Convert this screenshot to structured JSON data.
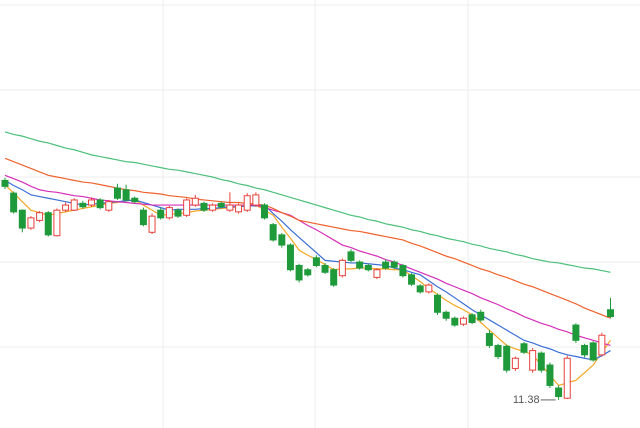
{
  "chart_data": {
    "type": "candlestick",
    "categories": [
      null,
      null,
      null,
      null,
      null,
      null,
      null,
      null,
      null,
      null,
      null,
      null,
      null,
      null,
      null,
      null,
      null,
      null,
      null,
      null,
      null,
      null,
      null,
      null,
      null,
      null,
      null,
      null,
      null,
      null,
      null,
      null,
      null,
      null,
      null,
      null,
      null,
      null,
      null,
      null,
      null,
      null,
      null,
      null,
      null,
      null,
      null,
      null,
      null,
      null,
      null,
      null,
      null,
      null,
      null,
      null,
      null,
      null,
      null,
      null,
      null,
      null,
      null,
      null,
      null,
      null,
      null,
      null,
      null,
      null,
      null
    ],
    "open": [
      13.96,
      13.81,
      13.61,
      13.4,
      13.49,
      13.58,
      13.31,
      13.61,
      13.61,
      13.69,
      13.67,
      13.73,
      13.61,
      13.87,
      13.85,
      13.75,
      13.61,
      13.35,
      13.61,
      13.52,
      13.61,
      13.55,
      13.67,
      13.69,
      13.61,
      13.69,
      13.61,
      13.59,
      13.61,
      13.67,
      13.67,
      13.44,
      13.32,
      13.2,
      12.96,
      12.91,
      13.05,
      12.96,
      12.91,
      12.84,
      13.12,
      13.0,
      12.96,
      12.82,
      13.0,
      13.0,
      12.96,
      12.85,
      12.72,
      12.65,
      12.61,
      12.41,
      12.34,
      12.27,
      12.38,
      12.41,
      12.16,
      12.02,
      12.01,
      11.75,
      12.04,
      11.73,
      11.93,
      11.79,
      11.52,
      11.4,
      12.26,
      12.02,
      12.05,
      11.91,
      12.44
    ],
    "close": [
      13.89,
      13.59,
      13.4,
      13.52,
      13.58,
      13.32,
      13.61,
      13.67,
      13.73,
      13.65,
      13.73,
      13.64,
      13.71,
      13.75,
      13.73,
      13.71,
      13.44,
      13.54,
      13.52,
      13.64,
      13.54,
      13.73,
      13.75,
      13.61,
      13.67,
      13.65,
      13.67,
      13.67,
      13.78,
      13.79,
      13.52,
      13.26,
      13.2,
      12.91,
      12.79,
      12.85,
      12.96,
      12.88,
      12.73,
      13.02,
      13.02,
      12.93,
      12.91,
      12.91,
      12.93,
      12.94,
      12.84,
      12.74,
      12.65,
      12.73,
      12.41,
      12.34,
      12.26,
      12.34,
      12.29,
      12.32,
      12.02,
      11.89,
      11.73,
      11.87,
      11.94,
      11.96,
      11.73,
      11.55,
      11.42,
      11.87,
      12.08,
      11.91,
      11.85,
      12.14,
      12.36
    ],
    "high": [
      13.99,
      13.83,
      13.62,
      13.54,
      13.6,
      13.6,
      13.63,
      13.7,
      13.75,
      13.72,
      13.76,
      13.75,
      13.73,
      13.92,
      13.91,
      13.77,
      13.64,
      13.57,
      13.64,
      13.66,
      13.63,
      13.75,
      13.79,
      13.71,
      13.69,
      13.71,
      13.82,
      13.69,
      13.81,
      13.82,
      13.69,
      13.46,
      13.34,
      13.22,
      12.98,
      12.93,
      13.08,
      12.99,
      12.93,
      13.04,
      13.15,
      13.02,
      12.98,
      12.93,
      13.03,
      13.02,
      12.98,
      12.87,
      12.74,
      12.75,
      12.63,
      12.43,
      12.36,
      12.36,
      12.4,
      12.44,
      12.2,
      12.04,
      12.03,
      11.89,
      12.06,
      11.99,
      11.95,
      11.82,
      11.55,
      11.9,
      12.28,
      12.04,
      12.07,
      12.17,
      12.58
    ],
    "low": [
      13.86,
      13.57,
      13.35,
      13.38,
      13.47,
      13.3,
      13.3,
      13.59,
      13.6,
      13.63,
      13.65,
      13.62,
      13.59,
      13.73,
      13.71,
      13.69,
      13.42,
      13.33,
      13.5,
      13.5,
      13.52,
      13.53,
      13.65,
      13.59,
      13.59,
      13.63,
      13.59,
      13.57,
      13.59,
      13.65,
      13.5,
      13.24,
      13.17,
      12.89,
      12.76,
      12.83,
      12.94,
      12.86,
      12.71,
      12.82,
      13.0,
      12.91,
      12.89,
      12.8,
      12.91,
      12.92,
      12.82,
      12.72,
      12.63,
      12.63,
      12.38,
      12.31,
      12.24,
      12.25,
      12.27,
      12.3,
      11.99,
      11.86,
      11.7,
      11.72,
      11.92,
      11.7,
      11.7,
      11.52,
      11.38,
      11.39,
      12.05,
      11.88,
      11.83,
      11.89,
      12.34
    ],
    "up_color": "#e8413c",
    "down_color": "#1f9a3a",
    "lines": [
      {
        "color": "#f5a623",
        "values": [
          13.91,
          13.81,
          13.71,
          13.61,
          13.58,
          13.55,
          13.57,
          13.59,
          13.61,
          13.63,
          13.65,
          13.67,
          13.69,
          13.7,
          13.72,
          13.73,
          13.67,
          13.61,
          13.55,
          13.56,
          13.57,
          13.58,
          13.6,
          13.61,
          13.62,
          13.63,
          13.64,
          13.65,
          13.66,
          13.67,
          13.61,
          13.55,
          13.41,
          13.28,
          13.14,
          13.08,
          13.03,
          12.97,
          12.91,
          12.92,
          12.92,
          12.93,
          12.93,
          12.92,
          12.92,
          12.91,
          12.91,
          12.84,
          12.77,
          12.69,
          12.62,
          12.55,
          12.49,
          12.44,
          12.38,
          12.29,
          12.2,
          12.11,
          12.02,
          11.98,
          11.95,
          11.91,
          11.79,
          11.67,
          11.55,
          11.58,
          11.61,
          11.7,
          11.79,
          11.94,
          12.08
        ]
      },
      {
        "color": "#3b6fd6",
        "values": [
          13.96,
          13.9,
          13.85,
          13.79,
          13.77,
          13.75,
          13.73,
          13.71,
          13.69,
          13.67,
          13.68,
          13.69,
          13.7,
          13.71,
          13.72,
          13.73,
          13.7,
          13.67,
          13.64,
          13.61,
          13.62,
          13.62,
          13.62,
          13.63,
          13.63,
          13.64,
          13.65,
          13.65,
          13.66,
          13.66,
          13.67,
          13.57,
          13.48,
          13.38,
          13.29,
          13.2,
          13.11,
          13.02,
          13.01,
          13.0,
          12.99,
          12.99,
          12.98,
          12.97,
          12.96,
          12.93,
          12.91,
          12.88,
          12.85,
          12.78,
          12.71,
          12.65,
          12.58,
          12.51,
          12.44,
          12.38,
          12.32,
          12.26,
          12.2,
          12.14,
          12.08,
          12.05,
          12.01,
          11.98,
          11.94,
          11.91,
          11.89,
          11.87,
          11.85,
          11.9,
          11.96
        ]
      },
      {
        "color": "#d62fb8",
        "values": [
          14.02,
          13.98,
          13.94,
          13.89,
          13.85,
          13.83,
          13.82,
          13.8,
          13.78,
          13.77,
          13.75,
          13.73,
          13.72,
          13.71,
          13.7,
          13.69,
          13.68,
          13.67,
          13.67,
          13.67,
          13.67,
          13.67,
          13.67,
          13.67,
          13.67,
          13.67,
          13.67,
          13.67,
          13.67,
          13.67,
          13.64,
          13.61,
          13.58,
          13.55,
          13.49,
          13.43,
          13.38,
          13.32,
          13.26,
          13.2,
          13.17,
          13.13,
          13.1,
          13.07,
          13.03,
          13.0,
          12.96,
          12.92,
          12.88,
          12.84,
          12.8,
          12.75,
          12.71,
          12.67,
          12.63,
          12.58,
          12.54,
          12.5,
          12.45,
          12.41,
          12.36,
          12.32,
          12.28,
          12.25,
          12.21,
          12.18,
          12.14,
          12.11,
          12.08,
          12.05,
          12.02
        ]
      },
      {
        "color": "#f0622d",
        "values": [
          14.22,
          14.18,
          14.14,
          14.1,
          14.06,
          14.02,
          14.0,
          13.98,
          13.96,
          13.94,
          13.93,
          13.91,
          13.89,
          13.87,
          13.85,
          13.84,
          13.82,
          13.81,
          13.8,
          13.78,
          13.77,
          13.76,
          13.74,
          13.73,
          13.72,
          13.71,
          13.7,
          13.7,
          13.69,
          13.68,
          13.67,
          13.63,
          13.58,
          13.54,
          13.49,
          13.47,
          13.45,
          13.43,
          13.41,
          13.39,
          13.37,
          13.36,
          13.34,
          13.32,
          13.3,
          13.28,
          13.26,
          13.22,
          13.19,
          13.15,
          13.11,
          13.07,
          13.04,
          13.0,
          12.96,
          12.92,
          12.89,
          12.85,
          12.82,
          12.78,
          12.74,
          12.71,
          12.67,
          12.63,
          12.59,
          12.55,
          12.51,
          12.46,
          12.42,
          12.38,
          12.34
        ]
      },
      {
        "color": "#4cc07a",
        "values": [
          14.53,
          14.5,
          14.48,
          14.45,
          14.42,
          14.4,
          14.37,
          14.34,
          14.32,
          14.29,
          14.26,
          14.24,
          14.22,
          14.2,
          14.18,
          14.17,
          14.15,
          14.13,
          14.11,
          14.09,
          14.08,
          14.06,
          14.04,
          14.02,
          14.0,
          13.97,
          13.95,
          13.92,
          13.9,
          13.87,
          13.85,
          13.82,
          13.79,
          13.76,
          13.73,
          13.7,
          13.67,
          13.64,
          13.61,
          13.58,
          13.55,
          13.53,
          13.5,
          13.48,
          13.45,
          13.43,
          13.41,
          13.38,
          13.36,
          13.33,
          13.31,
          13.28,
          13.26,
          13.24,
          13.21,
          13.19,
          13.16,
          13.14,
          13.12,
          13.09,
          13.07,
          13.04,
          13.02,
          13.0,
          12.99,
          12.97,
          12.95,
          12.93,
          12.92,
          12.9,
          12.88
        ]
      }
    ],
    "ylim": [
      11.05,
      16.08
    ]
  }
}
